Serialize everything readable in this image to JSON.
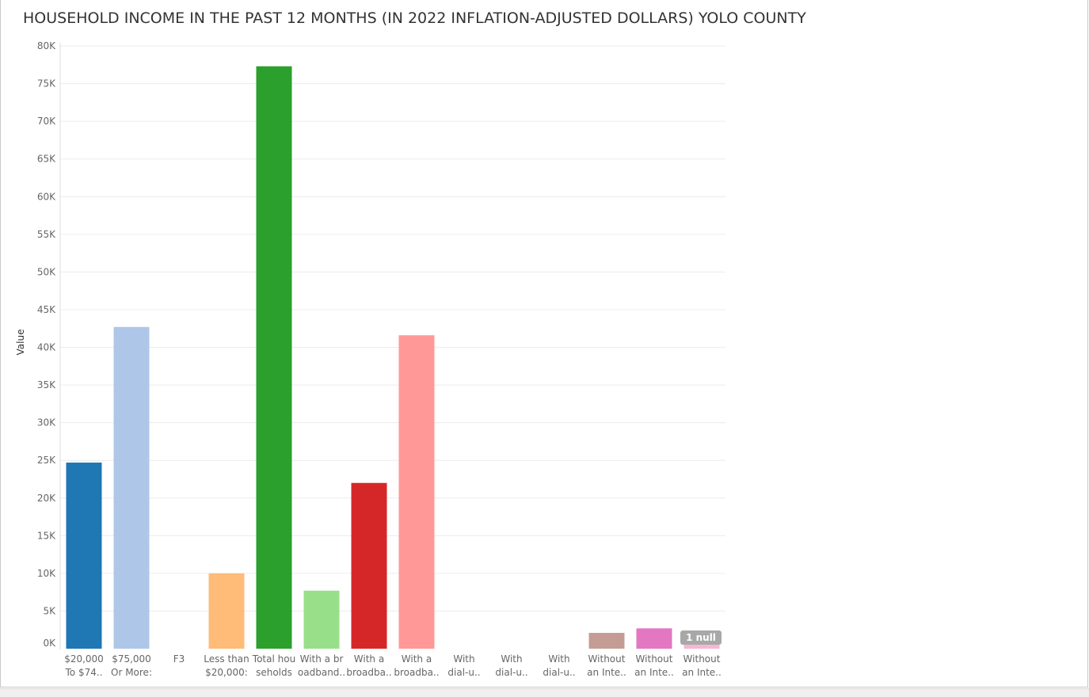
{
  "title": "HOUSEHOLD INCOME IN THE PAST 12 MONTHS (IN 2022 INFLATION-ADJUSTED DOLLARS) YOLO COUNTY",
  "chart_data": {
    "type": "bar",
    "title": "HOUSEHOLD INCOME IN THE PAST 12 MONTHS (IN 2022 INFLATION-ADJUSTED DOLLARS) YOLO COUNTY",
    "xlabel": "",
    "ylabel": "Value",
    "ylim": [
      0,
      80000
    ],
    "yticks": [
      0,
      5000,
      10000,
      15000,
      20000,
      25000,
      30000,
      35000,
      40000,
      45000,
      50000,
      55000,
      60000,
      65000,
      70000,
      75000,
      80000
    ],
    "ytick_labels": [
      "0K",
      "5K",
      "10K",
      "15K",
      "20K",
      "25K",
      "30K",
      "35K",
      "40K",
      "45K",
      "50K",
      "55K",
      "60K",
      "65K",
      "70K",
      "75K",
      "80K"
    ],
    "grid": true,
    "legend": "none",
    "categories": [
      [
        "$20,000",
        "To $74.."
      ],
      [
        "$75,000",
        "Or More:"
      ],
      [
        "F3"
      ],
      [
        "Less than",
        "$20,000:"
      ],
      [
        "Total hou",
        "seholds"
      ],
      [
        "With a br",
        "oadband.."
      ],
      [
        "With a",
        "broadba.."
      ],
      [
        "With a",
        "broadba.."
      ],
      [
        "With",
        "dial-u.."
      ],
      [
        "With",
        "dial-u.."
      ],
      [
        "With",
        "dial-u.."
      ],
      [
        "Without",
        "an Inte.."
      ],
      [
        "Without",
        "an Inte.."
      ],
      [
        "Without",
        "an Inte.."
      ]
    ],
    "values": [
      24700,
      42700,
      null,
      10000,
      77300,
      7700,
      22000,
      41600,
      0,
      0,
      0,
      2100,
      2700,
      600
    ],
    "colors": [
      "#1f77b4",
      "#aec7e8",
      "#ff7f0e",
      "#ffbb78",
      "#2ca02c",
      "#98df8a",
      "#d62728",
      "#ff9896",
      "#9467bd",
      "#c5b0d5",
      "#8c564b",
      "#c49c94",
      "#e377c2",
      "#f7b6d2"
    ],
    "null_indicator": "1 null"
  }
}
